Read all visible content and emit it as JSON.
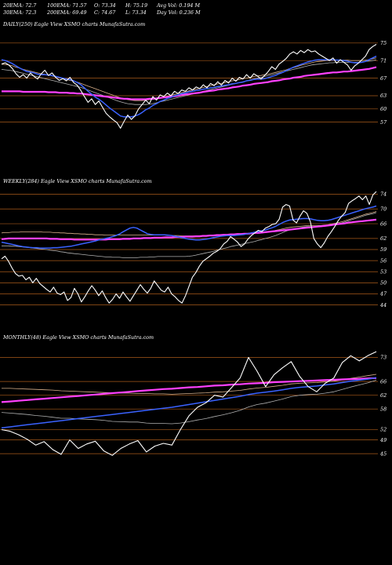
{
  "header": {
    "row1": [
      "20EMA: 72.7",
      "100EMA: 71.57",
      "O: 73.34",
      "H: 75.19",
      "Avg Vol: 0.194  M"
    ],
    "row2": [
      "30EMA: 72.3",
      "200EMA: 69.49",
      "C: 74.67",
      "L: 73.34",
      "Day Vol: 0.236  M"
    ]
  },
  "colors": {
    "price": "#ffffff",
    "ema_fast": "#3a62ff",
    "ema_slow": "#ff40ff",
    "ema_mid1": "#d9b08a",
    "ema_mid2": "#b0b0b0",
    "gridline": "#a85a1a",
    "background": "#000000"
  },
  "chart_data": [
    {
      "type": "line",
      "title": "DAILY(250) Eagle  View  XSMO charts MunafaSutra.com",
      "yticks": [
        75,
        71,
        67,
        63,
        60,
        57
      ],
      "ylim": [
        53,
        78
      ],
      "price": [
        70.2,
        70.5,
        70.0,
        69.2,
        68.0,
        67.2,
        67.8,
        67.0,
        68.2,
        67.4,
        66.8,
        68.0,
        68.8,
        67.6,
        68.2,
        67.2,
        66.5,
        66.9,
        66.4,
        67.2,
        66.0,
        65.4,
        64.2,
        62.8,
        61.5,
        62.3,
        61.0,
        61.8,
        60.4,
        59.0,
        58.2,
        57.5,
        56.9,
        55.6,
        57.2,
        58.6,
        57.6,
        58.4,
        60.0,
        61.0,
        62.0,
        61.2,
        62.8,
        62.0,
        63.2,
        62.8,
        63.6,
        63.0,
        64.0,
        63.5,
        64.3,
        64.0,
        64.8,
        64.3,
        65.0,
        64.6,
        65.5,
        64.8,
        65.8,
        65.3,
        66.2,
        65.4,
        66.5,
        65.9,
        67.0,
        66.3,
        67.2,
        66.8,
        67.8,
        67.0,
        68.0,
        67.5,
        66.8,
        67.6,
        68.5,
        69.6,
        69.0,
        70.2,
        70.8,
        71.5,
        72.5,
        73.0,
        72.5,
        73.3,
        72.8,
        73.5,
        73.0,
        73.2,
        72.5,
        72.0,
        71.5,
        71.0,
        71.6,
        70.4,
        71.2,
        70.6,
        70.0,
        68.8,
        69.8,
        70.4,
        71.2,
        72.0,
        73.5,
        74.2,
        74.7
      ],
      "ema_fast": [
        71.2,
        71.0,
        70.7,
        70.3,
        69.8,
        69.3,
        68.9,
        68.5,
        68.4,
        68.2,
        67.9,
        67.8,
        67.8,
        67.7,
        67.6,
        67.4,
        67.2,
        67.0,
        66.8,
        66.7,
        66.4,
        66.0,
        65.5,
        64.8,
        64.0,
        63.4,
        62.7,
        62.2,
        61.6,
        60.9,
        60.2,
        59.6,
        59.0,
        58.4,
        58.2,
        58.2,
        58.2,
        58.4,
        58.7,
        59.2,
        59.8,
        60.2,
        60.8,
        61.2,
        61.7,
        62.0,
        62.4,
        62.6,
        63.0,
        63.2,
        63.5,
        63.6,
        63.9,
        64.0,
        64.2,
        64.3,
        64.5,
        64.6,
        64.8,
        64.9,
        65.1,
        65.2,
        65.4,
        65.5,
        65.7,
        65.8,
        66.0,
        66.1,
        66.4,
        66.5,
        66.7,
        66.8,
        66.8,
        66.9,
        67.1,
        67.4,
        67.6,
        68.0,
        68.3,
        68.7,
        69.1,
        69.5,
        69.8,
        70.1,
        70.4,
        70.7,
        70.9,
        71.1,
        71.2,
        71.2,
        71.2,
        71.2,
        71.2,
        71.1,
        71.1,
        71.0,
        70.9,
        70.6,
        70.5,
        70.5,
        70.6,
        70.8,
        71.2,
        71.6,
        72.0
      ],
      "ema_slow": [
        64.0,
        64.0,
        64.0,
        64.0,
        64.0,
        64.0,
        63.9,
        63.9,
        63.9,
        63.9,
        63.9,
        63.9,
        63.9,
        63.8,
        63.8,
        63.8,
        63.7,
        63.7,
        63.7,
        63.6,
        63.6,
        63.5,
        63.5,
        63.4,
        63.3,
        63.2,
        63.1,
        63.0,
        62.9,
        62.8,
        62.7,
        62.6,
        62.5,
        62.4,
        62.3,
        62.3,
        62.2,
        62.2,
        62.2,
        62.2,
        62.2,
        62.3,
        62.3,
        62.4,
        62.5,
        62.6,
        62.7,
        62.8,
        62.9,
        63.0,
        63.2,
        63.3,
        63.4,
        63.5,
        63.6,
        63.7,
        63.9,
        64.0,
        64.1,
        64.2,
        64.4,
        64.5,
        64.6,
        64.7,
        64.9,
        65.0,
        65.1,
        65.3,
        65.4,
        65.5,
        65.7,
        65.8,
        65.9,
        66.0,
        66.1,
        66.3,
        66.4,
        66.5,
        66.7,
        66.8,
        66.9,
        67.1,
        67.2,
        67.3,
        67.5,
        67.6,
        67.7,
        67.8,
        67.9,
        68.0,
        68.1,
        68.2,
        68.3,
        68.3,
        68.4,
        68.5,
        68.5,
        68.6,
        68.7,
        68.8,
        68.9,
        69.0,
        69.1,
        69.3,
        69.5
      ],
      "ema_mid1": [
        70.2,
        70.1,
        70.0,
        69.8,
        69.5,
        69.3,
        69.0,
        68.8,
        68.6,
        68.4,
        68.2,
        68.0,
        67.9,
        67.7,
        67.5,
        67.3,
        67.1,
        66.9,
        66.7,
        66.5,
        66.3,
        66.1,
        65.8,
        65.5,
        65.2,
        64.9,
        64.6,
        64.3,
        64.0,
        63.7,
        63.4,
        63.1,
        62.8,
        62.5,
        62.3,
        62.1,
        62.0,
        61.9,
        61.9,
        61.9,
        62.0,
        62.1,
        62.2,
        62.4,
        62.5,
        62.7,
        62.9,
        63.1,
        63.3,
        63.5,
        63.7,
        63.9,
        64.1,
        64.3,
        64.5,
        64.7,
        64.9,
        65.1,
        65.3,
        65.5,
        65.7,
        65.8,
        66.0,
        66.2,
        66.4,
        66.5,
        66.7,
        66.9,
        67.0,
        67.2,
        67.4,
        67.5,
        67.6,
        67.8,
        67.9,
        68.1,
        68.3,
        68.5,
        68.7,
        68.9,
        69.2,
        69.4,
        69.6,
        69.9,
        70.1,
        70.3,
        70.5,
        70.7,
        70.8,
        70.9,
        71.0,
        71.0,
        71.1,
        71.1,
        71.1,
        71.1,
        71.1,
        71.0,
        71.0,
        71.0,
        71.0,
        71.1,
        71.2,
        71.4,
        71.6
      ],
      "ema_mid2": [
        69.0,
        68.9,
        68.8,
        68.7,
        68.5,
        68.3,
        68.1,
        67.9,
        67.7,
        67.5,
        67.3,
        67.1,
        66.9,
        66.7,
        66.5,
        66.3,
        66.1,
        65.9,
        65.7,
        65.5,
        65.3,
        65.1,
        64.9,
        64.6,
        64.3,
        64.0,
        63.7,
        63.4,
        63.1,
        62.8,
        62.5,
        62.2,
        61.9,
        61.6,
        61.4,
        61.2,
        61.1,
        61.0,
        61.0,
        61.0,
        61.0,
        61.1,
        61.2,
        61.4,
        61.6,
        61.8,
        62.0,
        62.2,
        62.4,
        62.6,
        62.8,
        63.0,
        63.2,
        63.4,
        63.6,
        63.8,
        64.0,
        64.2,
        64.4,
        64.6,
        64.8,
        65.0,
        65.2,
        65.4,
        65.6,
        65.8,
        66.0,
        66.2,
        66.4,
        66.6,
        66.8,
        67.0,
        67.2,
        67.4,
        67.6,
        67.8,
        68.0,
        68.2,
        68.4,
        68.6,
        68.8,
        69.0,
        69.2,
        69.4,
        69.6,
        69.8,
        70.0,
        70.1,
        70.2,
        70.3,
        70.4,
        70.5,
        70.5,
        70.6,
        70.6,
        70.6,
        70.6,
        70.6,
        70.6,
        70.6,
        70.7,
        70.8,
        70.9,
        71.0,
        71.2
      ]
    },
    {
      "type": "line",
      "title": "WEEKLY(284) Eagle  View  XSMO charts MunafaSutra.com",
      "yticks": [
        74,
        70,
        66,
        62,
        59,
        56,
        53,
        50,
        47,
        44
      ],
      "ylim": [
        42,
        76
      ],
      "price": [
        56.5,
        57.2,
        55.8,
        54.0,
        52.5,
        51.8,
        52.0,
        50.8,
        51.5,
        50.0,
        51.2,
        49.8,
        49.0,
        48.2,
        47.5,
        48.8,
        47.2,
        46.8,
        47.5,
        45.2,
        46.0,
        48.5,
        47.0,
        44.8,
        46.2,
        47.8,
        49.2,
        48.0,
        46.5,
        47.8,
        46.0,
        44.5,
        45.5,
        47.0,
        45.8,
        47.5,
        46.2,
        45.0,
        46.5,
        48.0,
        49.5,
        48.2,
        47.2,
        48.5,
        50.5,
        49.2,
        48.0,
        47.5,
        48.8,
        47.0,
        46.2,
        45.2,
        44.5,
        46.5,
        49.0,
        51.5,
        52.8,
        54.5,
        55.8,
        56.5,
        57.2,
        58.0,
        58.5,
        59.2,
        60.5,
        61.2,
        62.5,
        61.8,
        61.0,
        59.8,
        60.5,
        61.8,
        62.8,
        63.5,
        64.2,
        63.8,
        64.8,
        65.2,
        65.8,
        66.0,
        67.2,
        70.5,
        71.2,
        70.8,
        67.0,
        66.2,
        68.0,
        69.5,
        68.8,
        66.5,
        62.0,
        60.5,
        59.5,
        60.8,
        62.5,
        63.8,
        65.2,
        66.8,
        68.0,
        69.0,
        71.5,
        72.2,
        72.8,
        73.5,
        72.5,
        73.5,
        71.2,
        73.8,
        74.7
      ],
      "ema_fast": [
        61.0,
        60.8,
        60.6,
        60.4,
        60.2,
        60.0,
        59.8,
        59.7,
        59.6,
        59.5,
        59.5,
        59.4,
        59.4,
        59.4,
        59.4,
        59.5,
        59.5,
        59.6,
        59.7,
        59.8,
        59.9,
        60.1,
        60.3,
        60.5,
        60.7,
        60.9,
        61.1,
        61.3,
        61.6,
        61.8,
        62.0,
        62.2,
        62.5,
        62.8,
        63.2,
        63.8,
        64.3,
        64.8,
        65.0,
        64.8,
        64.3,
        63.8,
        63.3,
        63.1,
        63.0,
        63.0,
        63.0,
        63.0,
        62.9,
        62.8,
        62.6,
        62.4,
        62.2,
        62.0,
        61.8,
        61.7,
        61.6,
        61.6,
        61.7,
        61.8,
        62.0,
        62.2,
        62.4,
        62.6,
        62.7,
        62.8,
        62.8,
        62.8,
        62.9,
        63.0,
        63.1,
        63.3,
        63.5,
        63.7,
        63.9,
        64.1,
        64.3,
        64.6,
        64.9,
        65.3,
        65.8,
        66.3,
        66.7,
        67.0,
        67.1,
        67.2,
        67.3,
        67.4,
        67.4,
        67.3,
        67.1,
        66.9,
        66.8,
        66.8,
        66.9,
        67.1,
        67.4,
        67.7,
        68.0,
        68.3,
        68.6,
        68.9,
        69.2,
        69.5,
        69.8,
        70.1,
        70.3,
        70.5,
        70.8
      ],
      "ema_slow": [
        61.8,
        61.9,
        62.0,
        62.0,
        62.0,
        62.0,
        62.0,
        62.0,
        62.0,
        62.0,
        62.0,
        62.0,
        62.0,
        62.0,
        61.9,
        61.9,
        61.9,
        61.8,
        61.8,
        61.8,
        61.8,
        61.7,
        61.7,
        61.7,
        61.7,
        61.7,
        61.7,
        61.7,
        61.7,
        61.7,
        61.7,
        61.8,
        61.8,
        61.8,
        61.8,
        61.9,
        61.9,
        61.9,
        62.0,
        62.0,
        62.0,
        62.1,
        62.1,
        62.1,
        62.2,
        62.2,
        62.2,
        62.3,
        62.3,
        62.3,
        62.4,
        62.4,
        62.4,
        62.5,
        62.5,
        62.5,
        62.6,
        62.6,
        62.7,
        62.7,
        62.8,
        62.8,
        62.9,
        62.9,
        63.0,
        63.0,
        63.1,
        63.1,
        63.2,
        63.2,
        63.3,
        63.3,
        63.4,
        63.5,
        63.5,
        63.6,
        63.7,
        63.8,
        63.9,
        64.0,
        64.1,
        64.2,
        64.3,
        64.4,
        64.5,
        64.6,
        64.7,
        64.8,
        64.9,
        65.0,
        65.1,
        65.2,
        65.3,
        65.4,
        65.5,
        65.6,
        65.8,
        65.9,
        66.0,
        66.1,
        66.3,
        66.4,
        66.5,
        66.6,
        66.7,
        66.8,
        66.9,
        67.0,
        67.1
      ],
      "ema_mid1": [
        63.5,
        63.6,
        63.6,
        63.7,
        63.7,
        63.7,
        63.8,
        63.8,
        63.8,
        63.8,
        63.8,
        63.8,
        63.7,
        63.7,
        63.7,
        63.6,
        63.6,
        63.5,
        63.5,
        63.4,
        63.4,
        63.3,
        63.3,
        63.2,
        63.2,
        63.1,
        63.1,
        63.0,
        63.0,
        63.0,
        62.9,
        62.9,
        62.9,
        62.9,
        62.9,
        62.9,
        62.9,
        62.9,
        62.9,
        62.9,
        62.9,
        62.9,
        62.9,
        62.9,
        62.9,
        62.9,
        62.9,
        62.9,
        62.8,
        62.8,
        62.8,
        62.8,
        62.7,
        62.7,
        62.7,
        62.7,
        62.7,
        62.7,
        62.7,
        62.7,
        62.7,
        62.8,
        62.8,
        62.8,
        62.9,
        62.9,
        63.0,
        63.0,
        63.1,
        63.1,
        63.2,
        63.3,
        63.4,
        63.5,
        63.6,
        63.7,
        63.8,
        63.9,
        64.0,
        64.2,
        64.4,
        64.6,
        64.8,
        65.0,
        65.1,
        65.2,
        65.3,
        65.4,
        65.5,
        65.5,
        65.5,
        65.5,
        65.5,
        65.6,
        65.7,
        65.9,
        66.1,
        66.3,
        66.5,
        66.8,
        67.1,
        67.4,
        67.7,
        68.0,
        68.3,
        68.6,
        68.8,
        69.0,
        69.3
      ],
      "ema_mid2": [
        60.0,
        60.0,
        60.0,
        59.9,
        59.9,
        59.8,
        59.7,
        59.6,
        59.5,
        59.4,
        59.3,
        59.2,
        59.1,
        59.0,
        58.8,
        58.7,
        58.6,
        58.4,
        58.3,
        58.1,
        58.0,
        57.9,
        57.8,
        57.7,
        57.6,
        57.5,
        57.4,
        57.3,
        57.2,
        57.1,
        57.0,
        57.0,
        56.9,
        56.9,
        56.9,
        56.8,
        56.8,
        56.8,
        56.8,
        56.8,
        56.9,
        56.9,
        56.9,
        57.0,
        57.0,
        57.1,
        57.1,
        57.1,
        57.1,
        57.1,
        57.1,
        57.1,
        57.1,
        57.1,
        57.2,
        57.3,
        57.5,
        57.7,
        57.9,
        58.1,
        58.3,
        58.5,
        58.8,
        59.0,
        59.3,
        59.5,
        59.8,
        60.0,
        60.2,
        60.4,
        60.6,
        60.8,
        61.0,
        61.2,
        61.5,
        61.7,
        62.0,
        62.2,
        62.5,
        62.8,
        63.2,
        63.6,
        64.0,
        64.3,
        64.5,
        64.7,
        64.9,
        65.1,
        65.2,
        65.2,
        65.2,
        65.2,
        65.2,
        65.3,
        65.4,
        65.6,
        65.8,
        66.0,
        66.2,
        66.5,
        66.8,
        67.1,
        67.4,
        67.7,
        68.0,
        68.3,
        68.5,
        68.7,
        69.0
      ]
    },
    {
      "type": "line",
      "title": "MONTHLY(48) Eagle  View  XSMO charts MunafaSutra.com",
      "yticks": [
        73,
        66,
        62,
        58,
        52,
        49,
        45
      ],
      "ylim": [
        40,
        77
      ],
      "price": [
        52.0,
        51.5,
        50.5,
        49.2,
        47.5,
        48.5,
        46.2,
        44.8,
        49.0,
        46.5,
        47.8,
        48.6,
        45.8,
        44.5,
        46.5,
        47.8,
        48.8,
        45.5,
        47.2,
        48.0,
        47.5,
        52.0,
        56.0,
        58.5,
        59.8,
        62.0,
        61.5,
        64.2,
        67.0,
        73.0,
        69.0,
        64.5,
        68.0,
        70.0,
        71.8,
        67.5,
        64.5,
        63.0,
        65.5,
        67.0,
        71.5,
        73.5,
        72.0,
        73.5,
        74.7
      ],
      "ema_fast": [
        52.5,
        52.8,
        53.1,
        53.4,
        53.7,
        54.0,
        54.3,
        54.6,
        54.9,
        55.2,
        55.5,
        55.8,
        56.1,
        56.4,
        56.7,
        57.0,
        57.3,
        57.6,
        57.9,
        58.2,
        58.5,
        58.9,
        59.3,
        59.7,
        60.1,
        60.5,
        60.9,
        61.3,
        61.7,
        62.2,
        62.6,
        62.9,
        63.2,
        63.6,
        64.0,
        64.3,
        64.5,
        64.7,
        65.0,
        65.3,
        65.7,
        66.1,
        66.4,
        66.7,
        67.1
      ],
      "ema_slow": [
        60.0,
        60.2,
        60.4,
        60.6,
        60.8,
        61.0,
        61.2,
        61.4,
        61.6,
        61.8,
        62.0,
        62.2,
        62.4,
        62.6,
        62.8,
        63.0,
        63.2,
        63.4,
        63.6,
        63.8,
        63.9,
        64.1,
        64.3,
        64.4,
        64.6,
        64.8,
        64.9,
        65.1,
        65.2,
        65.4,
        65.5,
        65.6,
        65.8,
        65.9,
        66.0,
        66.1,
        66.2,
        66.3,
        66.4,
        66.5,
        66.6,
        66.7,
        66.8,
        66.9,
        67.0
      ],
      "ema_mid1": [
        64.0,
        64.0,
        63.9,
        63.8,
        63.7,
        63.6,
        63.5,
        63.3,
        63.2,
        63.1,
        63.0,
        62.9,
        62.8,
        62.7,
        62.6,
        62.6,
        62.5,
        62.5,
        62.4,
        62.4,
        62.3,
        62.4,
        62.5,
        62.6,
        62.7,
        62.9,
        63.0,
        63.2,
        63.4,
        63.8,
        64.1,
        64.3,
        64.6,
        64.9,
        65.3,
        65.5,
        65.6,
        65.7,
        65.9,
        66.1,
        66.5,
        66.9,
        67.3,
        67.7,
        68.1
      ],
      "ema_mid2": [
        57.0,
        56.8,
        56.6,
        56.4,
        56.1,
        55.9,
        55.6,
        55.3,
        55.3,
        55.1,
        55.0,
        54.9,
        54.7,
        54.4,
        54.3,
        54.2,
        54.2,
        53.9,
        53.8,
        53.8,
        53.7,
        53.9,
        54.3,
        54.8,
        55.2,
        55.8,
        56.3,
        56.9,
        57.6,
        58.6,
        59.3,
        59.7,
        60.3,
        60.9,
        61.6,
        62.0,
        62.2,
        62.3,
        62.6,
        63.0,
        63.7,
        64.4,
        65.0,
        65.6,
        66.4
      ]
    }
  ]
}
